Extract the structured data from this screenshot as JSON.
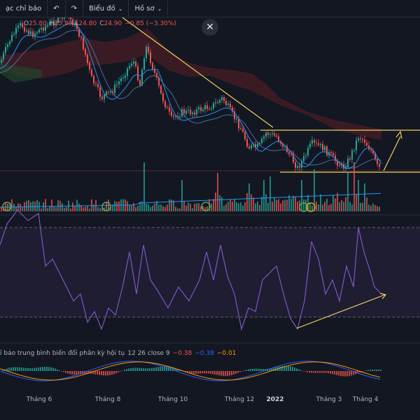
{
  "toolbar": {
    "indicators_label": "ạc chỉ báo",
    "chart_type_label": "Biểu đồ",
    "profile_label": "Hồ sơ"
  },
  "ohlc": {
    "o_key": "O",
    "o_val": "25.80",
    "h_key": "H",
    "h_val": "25.80",
    "l_key": "L",
    "l_val": "24.80",
    "c_key": "C",
    "c_val": "24.90",
    "change": "−0.85 (−3.30%)"
  },
  "macd": {
    "name": "ỉ báo trung bình biến đổi phân kỳ hội tụ",
    "params": "12 26 close 9",
    "v1": "−0.38",
    "v2": "−0.38",
    "v3": "−0.01"
  },
  "x_labels": [
    "Tháng 6",
    "Tháng 8",
    "Tháng 10",
    "Tháng 12",
    "2022",
    "Tháng 3",
    "Tháng 4"
  ],
  "colors": {
    "background": "#131722",
    "up": "#26a69a",
    "down": "#ef5350",
    "trendline": "#f0d060",
    "rsi": "#7e57c2",
    "ma": "#2196f3"
  },
  "icons": {
    "undo": "undo-icon",
    "close": "close-icon",
    "chevron": "chevron-down-icon",
    "signal": "signal-circle-icon"
  }
}
